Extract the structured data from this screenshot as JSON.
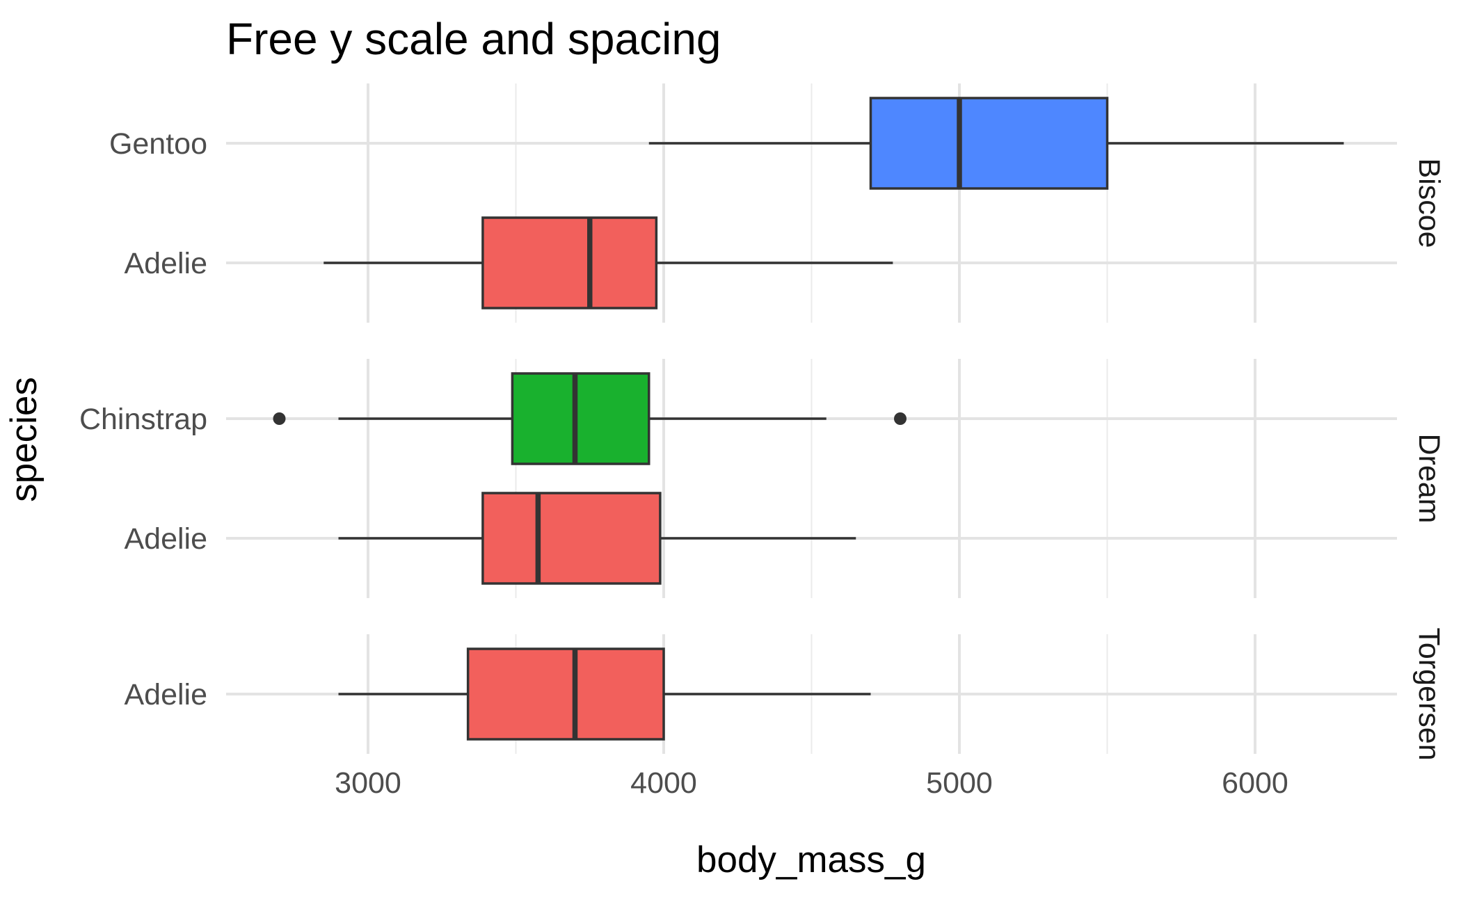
{
  "chart_data": {
    "type": "boxplot",
    "title": "Free y scale and spacing",
    "xlabel": "body_mass_g",
    "ylabel": "species",
    "xlim": [
      2520,
      6480
    ],
    "x_ticks": [
      3000,
      4000,
      5000,
      6000
    ],
    "x_minor_ticks": [
      3500,
      4500,
      5500
    ],
    "grid": true,
    "facet_by": "island",
    "colors": {
      "Adelie": "#F2605C",
      "Chinstrap": "#19B12E",
      "Gentoo": "#4E87FF"
    },
    "panels": [
      {
        "island": "Biscoe",
        "categories": [
          "Gentoo",
          "Adelie"
        ],
        "boxes": [
          {
            "species": "Gentoo",
            "whisker_low": 3950,
            "q1": 4700,
            "median": 5000,
            "q3": 5500,
            "whisker_high": 6300,
            "outliers": []
          },
          {
            "species": "Adelie",
            "whisker_low": 2850,
            "q1": 3388,
            "median": 3750,
            "q3": 3975,
            "whisker_high": 4775,
            "outliers": []
          }
        ]
      },
      {
        "island": "Dream",
        "categories": [
          "Chinstrap",
          "Adelie"
        ],
        "boxes": [
          {
            "species": "Chinstrap",
            "whisker_low": 2900,
            "q1": 3488,
            "median": 3700,
            "q3": 3950,
            "whisker_high": 4550,
            "outliers": [
              2700,
              4800
            ]
          },
          {
            "species": "Adelie",
            "whisker_low": 2900,
            "q1": 3388,
            "median": 3575,
            "q3": 3988,
            "whisker_high": 4650,
            "outliers": []
          }
        ]
      },
      {
        "island": "Torgersen",
        "categories": [
          "Adelie"
        ],
        "boxes": [
          {
            "species": "Adelie",
            "whisker_low": 2900,
            "q1": 3338,
            "median": 3700,
            "q3": 4000,
            "whisker_high": 4700,
            "outliers": []
          }
        ]
      }
    ]
  }
}
